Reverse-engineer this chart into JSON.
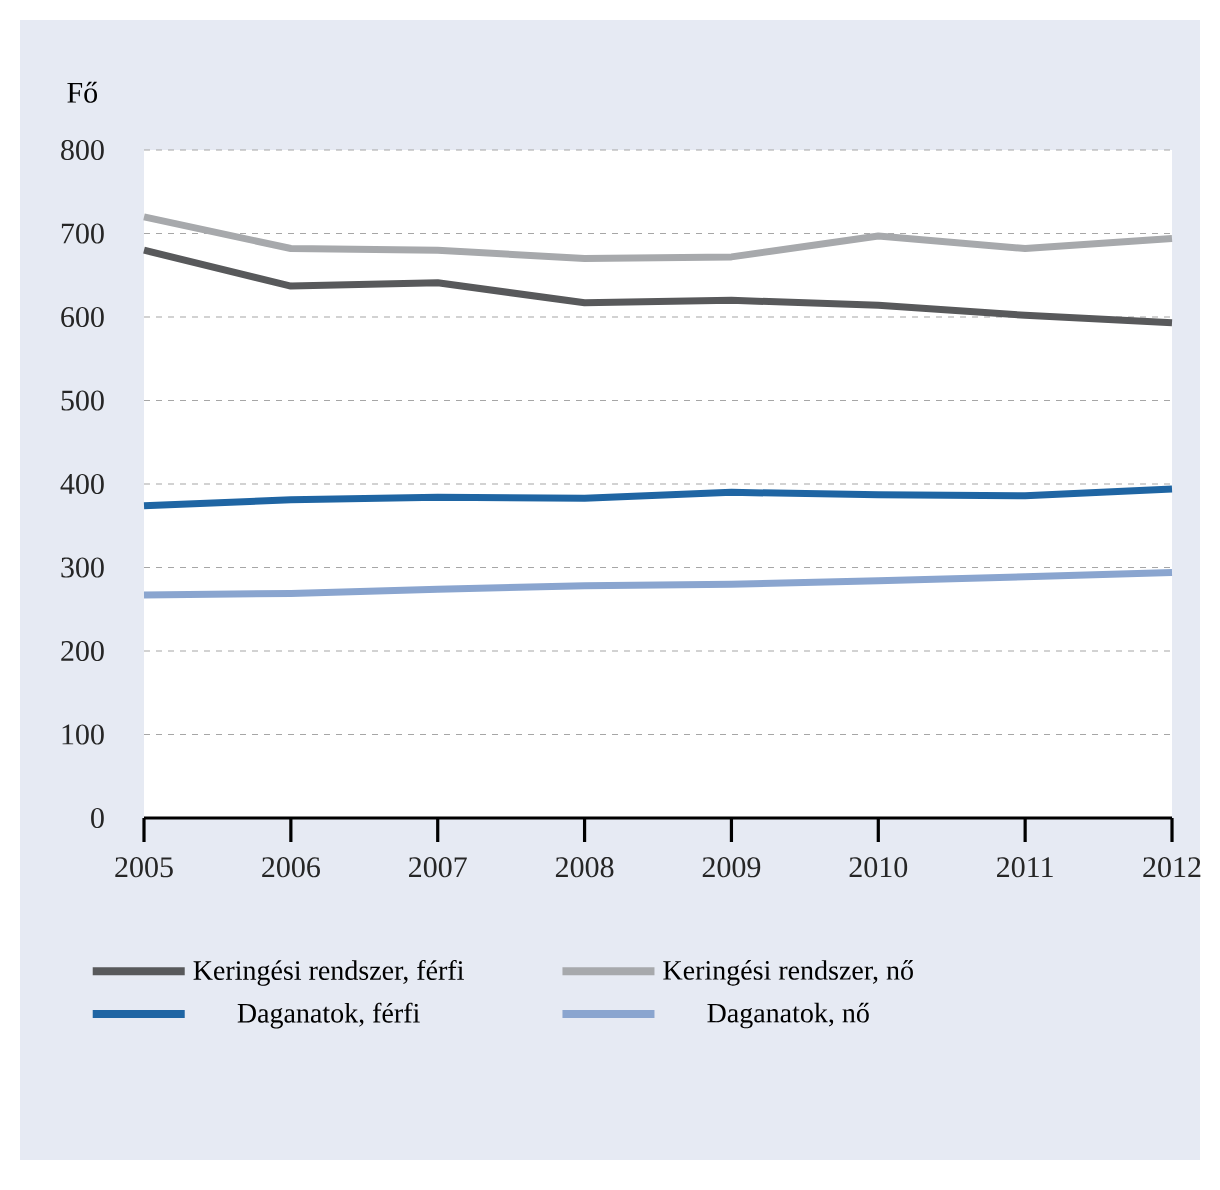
{
  "chart_data": {
    "type": "line",
    "ylabel": "Fő",
    "categories": [
      "2005",
      "2006",
      "2007",
      "2008",
      "2009",
      "2010",
      "2011",
      "2012"
    ],
    "series": [
      {
        "name": "Keringési rendszer, férfi",
        "color": "#58595b",
        "values": [
          680,
          637,
          641,
          617,
          620,
          614,
          602,
          593
        ]
      },
      {
        "name": "Keringési rendszer, nő",
        "color": "#a7a9ac",
        "values": [
          720,
          682,
          680,
          670,
          672,
          697,
          682,
          694
        ]
      },
      {
        "name": "Daganatok, férfi",
        "color": "#1f65a3",
        "values": [
          374,
          381,
          384,
          383,
          390,
          387,
          386,
          394
        ]
      },
      {
        "name": "Daganatok, nő",
        "color": "#8aa5cf",
        "values": [
          267,
          269,
          274,
          278,
          280,
          284,
          289,
          294
        ]
      }
    ],
    "ylim": [
      0,
      800
    ],
    "yticks": [
      0,
      100,
      200,
      300,
      400,
      500,
      600,
      700,
      800
    ],
    "grid": "y",
    "legend": "bottom",
    "marker": "none",
    "line_style": "solid"
  }
}
